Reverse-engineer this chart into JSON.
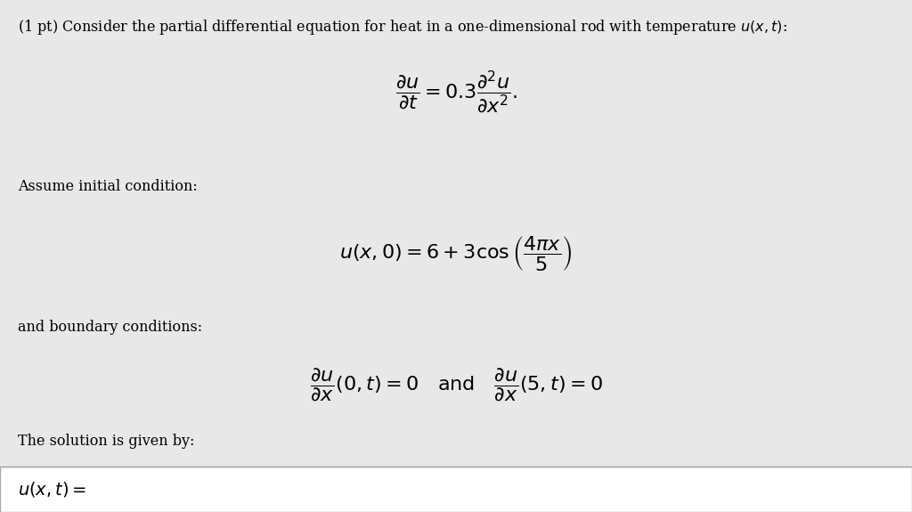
{
  "bg_color": "#e8e8e8",
  "white_color": "#ffffff",
  "text_color": "#000000",
  "header_text": "(1 pt) Consider the partial differential equation for heat in a one-dimensional rod with temperature $u(x,t)$:",
  "pde_eq": "$\\dfrac{\\partial u}{\\partial t} = 0.3\\dfrac{\\partial^2 u}{\\partial x^2}.$",
  "ic_label": "Assume initial condition:",
  "ic_eq": "$u(x,0) = 6 + 3\\cos\\left(\\dfrac{4\\pi x}{5}\\right)$",
  "bc_label": "and boundary conditions:",
  "bc_eq": "$\\dfrac{\\partial u}{\\partial x}(0,t) = 0 \\quad \\text{and} \\quad \\dfrac{\\partial u}{\\partial x}(5,t) = 0$",
  "solution_label": "The solution is given by:",
  "solution_prefix": "$u(x,t) =$",
  "figwidth": 10.24,
  "figheight": 5.75
}
